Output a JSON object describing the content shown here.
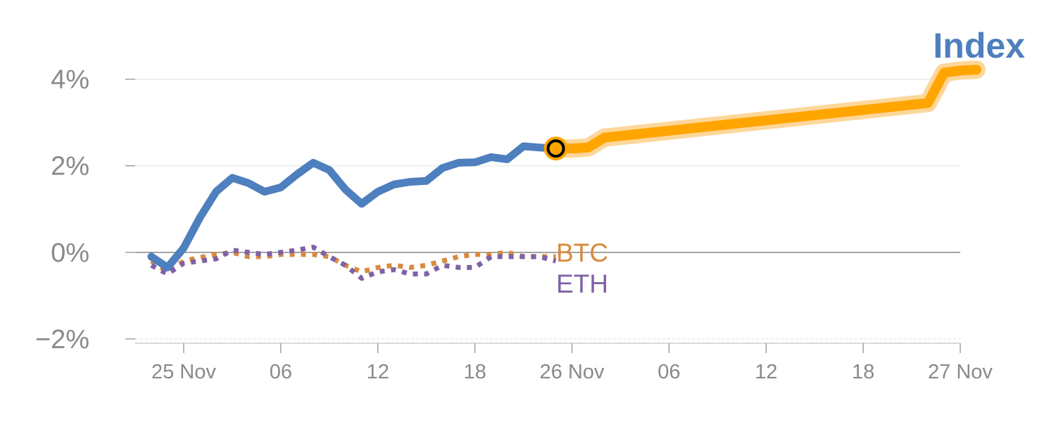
{
  "chart_data": {
    "type": "line",
    "title": "Index",
    "xlabel": "",
    "ylabel": "",
    "ylim": [
      -2.1,
      4.4
    ],
    "y_ticks": [
      -2,
      0,
      2,
      4
    ],
    "y_tick_labels": [
      "−2%",
      "0%",
      "2%",
      "4%"
    ],
    "x_range": [
      0,
      51
    ],
    "x_ticks": [
      3,
      9,
      15,
      21,
      27,
      33,
      39,
      45,
      51
    ],
    "x_tick_labels": [
      "25 Nov",
      "06",
      "12",
      "18",
      "26 Nov",
      "06",
      "12",
      "18",
      "27 Nov"
    ],
    "grid": true,
    "colors": {
      "index": "#4e7fbe",
      "forecast": "#ffa500",
      "forecast_halo": "#fdd79a",
      "btc": "#d98a3c",
      "eth": "#8061a6",
      "title": "#4e7fbe",
      "tick_text": "#8a8a8a",
      "grid": "#e6e6e6",
      "zero_line": "#909090"
    },
    "series": [
      {
        "key": "index",
        "name": "",
        "style": "solid",
        "x": [
          1,
          2,
          3,
          4,
          5,
          6,
          7,
          8,
          9,
          10,
          11,
          12,
          13,
          14,
          15,
          16,
          17,
          18,
          19,
          20,
          21,
          22,
          23,
          24,
          25,
          26,
          27
        ],
        "y": [
          -0.1,
          -0.35,
          0.1,
          0.8,
          1.4,
          1.72,
          1.6,
          1.4,
          1.5,
          1.8,
          2.07,
          1.9,
          1.45,
          1.12,
          1.4,
          1.57,
          1.63,
          1.65,
          1.95,
          2.07,
          2.08,
          2.2,
          2.15,
          2.45,
          2.42,
          2.4,
          2.4
        ]
      },
      {
        "key": "forecast",
        "name": "",
        "style": "band",
        "x": [
          26,
          27,
          28,
          29,
          49,
          50,
          51,
          52
        ],
        "y": [
          2.4,
          2.4,
          2.42,
          2.65,
          3.45,
          4.15,
          4.2,
          4.22
        ]
      },
      {
        "key": "btc",
        "name": "BTC",
        "style": "dotted",
        "x": [
          1,
          2,
          3,
          4,
          5,
          6,
          7,
          8,
          9,
          10,
          11,
          12,
          13,
          14,
          15,
          16,
          17,
          18,
          19,
          20,
          21,
          22,
          23,
          24,
          25,
          26
        ],
        "y": [
          -0.2,
          -0.45,
          -0.2,
          -0.12,
          -0.05,
          0.0,
          -0.1,
          -0.1,
          -0.05,
          -0.05,
          -0.05,
          -0.1,
          -0.3,
          -0.45,
          -0.35,
          -0.3,
          -0.35,
          -0.3,
          -0.2,
          -0.1,
          -0.05,
          -0.05,
          0.0,
          -0.1,
          -0.1,
          -0.1
        ]
      },
      {
        "key": "eth",
        "name": "ETH",
        "style": "dotted",
        "x": [
          1,
          2,
          3,
          4,
          5,
          6,
          7,
          8,
          9,
          10,
          11,
          12,
          13,
          14,
          15,
          16,
          17,
          18,
          19,
          20,
          21,
          22,
          23,
          24,
          25,
          26
        ],
        "y": [
          -0.3,
          -0.5,
          -0.25,
          -0.2,
          -0.15,
          0.05,
          0.0,
          -0.05,
          0.0,
          0.05,
          0.12,
          -0.1,
          -0.3,
          -0.6,
          -0.45,
          -0.4,
          -0.5,
          -0.5,
          -0.3,
          -0.35,
          -0.35,
          -0.1,
          -0.1,
          -0.1,
          -0.1,
          -0.2
        ]
      }
    ],
    "marker": {
      "x": 26,
      "y": 2.4
    }
  }
}
